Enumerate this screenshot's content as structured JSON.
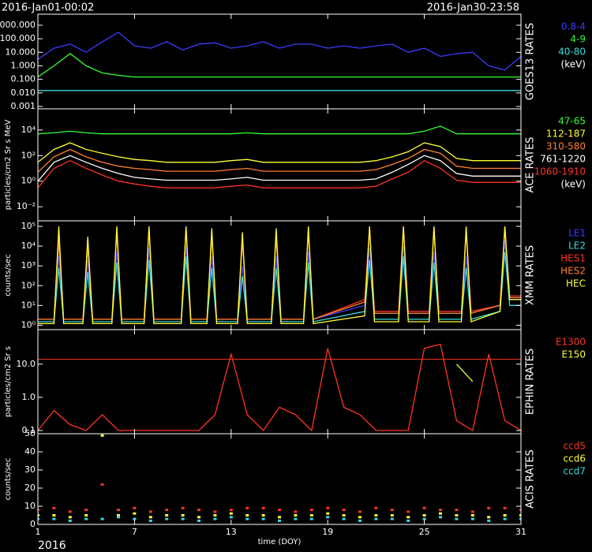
{
  "header": {
    "start": "2016-Jan01-00:02",
    "end": "2016-Jan30-23:58"
  },
  "footer": {
    "year": "2016"
  },
  "chart_data": [
    {
      "type": "line",
      "panel_label": "GOES13 RATES",
      "legend_unit": "(keV)",
      "log_y": true,
      "x": [
        1,
        2,
        3,
        4,
        5,
        6,
        7,
        8,
        9,
        10,
        11,
        12,
        13,
        14,
        15,
        16,
        17,
        18,
        19,
        20,
        21,
        22,
        23,
        24,
        25,
        26,
        27,
        28,
        29,
        30,
        31
      ],
      "series": [
        {
          "name": "0.8-4",
          "color": "#3c3cff",
          "values": [
            3,
            20,
            40,
            10,
            60,
            300,
            30,
            20,
            60,
            15,
            40,
            50,
            20,
            30,
            60,
            20,
            40,
            40,
            20,
            30,
            20,
            30,
            40,
            10,
            20,
            5,
            8,
            10,
            1,
            0.5,
            5
          ]
        },
        {
          "name": "4-9",
          "color": "#33ff33",
          "values": [
            0.15,
            1,
            8,
            1,
            0.3,
            0.2,
            0.15,
            0.15,
            0.15,
            0.15,
            0.15,
            0.15,
            0.15,
            0.15,
            0.15,
            0.15,
            0.15,
            0.15,
            0.15,
            0.15,
            0.15,
            0.15,
            0.15,
            0.15,
            0.15,
            0.15,
            0.15,
            0.15,
            0.15,
            0.15,
            0.15
          ]
        },
        {
          "name": "40-80",
          "color": "#33dddd",
          "values": [
            0.015,
            0.015,
            0.015,
            0.015,
            0.015,
            0.015,
            0.015,
            0.015,
            0.015,
            0.015,
            0.015,
            0.015,
            0.015,
            0.015,
            0.015,
            0.015,
            0.015,
            0.015,
            0.015,
            0.015,
            0.015,
            0.015,
            0.015,
            0.015,
            0.015,
            0.015,
            0.015,
            0.015,
            0.015,
            0.015,
            0.015
          ]
        }
      ],
      "xlim": [
        1,
        31
      ],
      "xticks": [
        1,
        7,
        13,
        19,
        25,
        31
      ],
      "ylim": [
        0.00067,
        6500
      ],
      "yticks": [
        0.001,
        {
          "value": 0.01,
          "label": "0.010"
        },
        {
          "value": 0.1,
          "label": "0.100"
        },
        {
          "value": 1,
          "label": "1.000"
        },
        {
          "value": 10,
          "label": "10.000"
        },
        {
          "value": 100,
          "label": "100.000"
        },
        {
          "value": 1000,
          "label": "1000.000"
        }
      ]
    },
    {
      "type": "line",
      "panel_label": "ACE RATES",
      "legend_unit": "(keV)",
      "ylabel": "particles/cm2 Sr s MeV",
      "log_y": true,
      "x": [
        1,
        2,
        3,
        4,
        5,
        6,
        7,
        8,
        9,
        10,
        11,
        12,
        13,
        14,
        15,
        16,
        17,
        18,
        19,
        20,
        21,
        22,
        23,
        24,
        25,
        26,
        27,
        28,
        29,
        30,
        31
      ],
      "series": [
        {
          "name": "47-65",
          "color": "#33ff33",
          "values": [
            5000,
            6000,
            8000,
            6000,
            5000,
            5000,
            5000,
            5000,
            5000,
            5000,
            5000,
            5000,
            5000,
            6000,
            5000,
            5000,
            5000,
            5000,
            5000,
            5000,
            5000,
            5000,
            5000,
            5000,
            8000,
            20000,
            5000,
            5000,
            5000,
            5000,
            5000
          ]
        },
        {
          "name": "112-187",
          "color": "#ffff33",
          "values": [
            30,
            300,
            1000,
            300,
            150,
            80,
            50,
            40,
            30,
            30,
            30,
            30,
            40,
            50,
            30,
            30,
            30,
            30,
            30,
            30,
            30,
            40,
            80,
            200,
            1000,
            500,
            60,
            40,
            40,
            40,
            40
          ]
        },
        {
          "name": "310-580",
          "color": "#ff8030",
          "values": [
            5,
            80,
            300,
            80,
            30,
            15,
            10,
            8,
            6,
            6,
            6,
            6,
            8,
            10,
            6,
            6,
            6,
            6,
            6,
            6,
            6,
            8,
            20,
            60,
            300,
            150,
            15,
            10,
            10,
            10,
            10
          ]
        },
        {
          "name": "761-1220",
          "color": "#ffffff",
          "values": [
            1,
            30,
            100,
            30,
            10,
            4,
            2,
            1.5,
            1.2,
            1.2,
            1.2,
            1.2,
            1.5,
            2,
            1.2,
            1.2,
            1.2,
            1.2,
            1.2,
            1.2,
            1.2,
            1.5,
            5,
            20,
            100,
            40,
            4,
            2.5,
            2.5,
            2.5,
            2.5
          ]
        },
        {
          "name": "1060-1910",
          "color": "#ff3322",
          "values": [
            0.3,
            10,
            40,
            10,
            3,
            1,
            0.6,
            0.4,
            0.3,
            0.3,
            0.3,
            0.3,
            0.4,
            0.5,
            0.3,
            0.3,
            0.3,
            0.3,
            0.3,
            0.3,
            0.3,
            0.4,
            1.5,
            5,
            40,
            10,
            1.2,
            0.8,
            0.8,
            0.8,
            0.8
          ]
        }
      ],
      "xlim": [
        1,
        31
      ],
      "xticks": [
        1,
        7,
        13,
        19,
        25,
        31
      ],
      "ylim": [
        0.0008,
        450000
      ],
      "yticks": [
        {
          "value": 0.01,
          "label": "10⁻²"
        },
        {
          "value": 1,
          "label": "10⁰"
        },
        {
          "value": 100,
          "label": "10²"
        },
        {
          "value": 10000,
          "label": "10⁴"
        }
      ]
    },
    {
      "type": "line",
      "panel_label": "XMM RATES",
      "ylabel": "counts/sec",
      "log_y": true,
      "x": [
        1,
        2.0,
        2.3,
        2.6,
        3.8,
        4.1,
        4.4,
        5.6,
        5.9,
        6.2,
        7.6,
        7.9,
        8.2,
        9.9,
        10.2,
        10.5,
        11.5,
        11.8,
        12.1,
        13.4,
        13.7,
        14.0,
        15.5,
        15.8,
        16.1,
        17.5,
        17.8,
        18.1,
        21.3,
        21.6,
        21.9,
        23.4,
        23.7,
        24.0,
        25.3,
        25.6,
        25.9,
        27.3,
        27.6,
        27.9,
        29.7,
        30.0,
        30.3,
        31
      ],
      "series": [
        {
          "name": "LE1",
          "color": "#3c3cff",
          "values": [
            2,
            2,
            3000,
            2,
            2,
            2000,
            2,
            2,
            5000,
            2,
            2,
            8000,
            2,
            2,
            10000,
            2,
            2,
            3000,
            2,
            2,
            1000,
            2,
            2,
            3000,
            2,
            2,
            5000,
            2,
            10,
            8000,
            5,
            5,
            10000,
            5,
            5,
            5000,
            5,
            5,
            3000,
            5,
            10,
            20000,
            20,
            20
          ]
        },
        {
          "name": "LE2",
          "color": "#33dddd",
          "values": [
            1.5,
            1.5,
            800,
            1.5,
            1.5,
            500,
            1.5,
            1.5,
            1500,
            1.5,
            1.5,
            2000,
            1.5,
            1.5,
            3000,
            1.5,
            1.5,
            800,
            1.5,
            1.5,
            300,
            1.5,
            1.5,
            800,
            1.5,
            1.5,
            1500,
            1.5,
            5,
            2000,
            2,
            2,
            3000,
            2,
            2,
            1500,
            2,
            2,
            800,
            2,
            5,
            5000,
            10,
            10
          ]
        },
        {
          "name": "HES1",
          "color": "#ff3322",
          "values": [
            2,
            2,
            50000,
            2,
            2,
            20000,
            2,
            2,
            80000,
            2,
            2,
            100000,
            2,
            2,
            100000,
            2,
            2,
            50000,
            2,
            2,
            30000,
            2,
            2,
            50000,
            2,
            2,
            80000,
            2,
            20,
            100000,
            5,
            5,
            100000,
            5,
            5,
            100000,
            5,
            5,
            80000,
            5,
            10,
            100000,
            30,
            30
          ]
        },
        {
          "name": "HES2",
          "color": "#ff8030",
          "values": [
            2,
            2,
            20000,
            2,
            2,
            10000,
            2,
            2,
            50000,
            2,
            2,
            80000,
            2,
            2,
            80000,
            2,
            2,
            30000,
            2,
            2,
            20000,
            2,
            2,
            30000,
            2,
            2,
            50000,
            2,
            15,
            80000,
            4,
            4,
            80000,
            4,
            4,
            80000,
            4,
            4,
            50000,
            4,
            10,
            80000,
            25,
            25
          ]
        },
        {
          "name": "HEC",
          "color": "#ffff33",
          "values": [
            1.2,
            1.2,
            100000,
            1.2,
            1.2,
            30000,
            1.2,
            1.2,
            100000,
            1.2,
            1.2,
            100000,
            1.2,
            1.2,
            100000,
            1.2,
            1.2,
            80000,
            1.2,
            1.2,
            50000,
            1.2,
            1.2,
            80000,
            1.2,
            1.2,
            100000,
            1.2,
            3,
            100000,
            1.5,
            1.5,
            100000,
            1.5,
            1.5,
            100000,
            1.5,
            1.5,
            100000,
            1.5,
            5,
            100000,
            20,
            20
          ]
        }
      ],
      "xlim": [
        1,
        31
      ],
      "xticks": [
        1,
        7,
        13,
        19,
        25,
        31
      ],
      "ylim": [
        0.6,
        190000
      ],
      "yticks": [
        {
          "value": 1,
          "label": "10⁰"
        },
        {
          "value": 10,
          "label": "10¹"
        },
        {
          "value": 100,
          "label": "10²"
        },
        {
          "value": 1000,
          "label": "10³"
        },
        {
          "value": 10000,
          "label": "10⁴"
        },
        {
          "value": 100000,
          "label": "10⁵"
        }
      ]
    },
    {
      "type": "line",
      "panel_label": "EPHIN RATES",
      "ylabel": "particles/cm2 Sr s",
      "log_y": true,
      "hline": 14,
      "x": [
        1,
        2,
        3,
        4,
        5,
        6,
        7,
        8,
        9,
        10,
        11,
        12,
        13,
        14,
        15,
        16,
        17,
        18,
        19,
        20,
        21,
        22,
        23,
        24,
        25,
        26,
        27,
        28,
        29,
        30,
        31
      ],
      "series": [
        {
          "name": "E1300",
          "color": "#ff3322",
          "values": [
            0.1,
            0.4,
            0.15,
            0.1,
            0.3,
            0.1,
            0.1,
            0.1,
            0.1,
            0.1,
            0.1,
            0.3,
            20,
            0.3,
            0.1,
            0.5,
            0.3,
            0.1,
            30,
            0.5,
            0.3,
            0.1,
            0.1,
            0.1,
            30,
            40,
            0.2,
            0.1,
            20,
            0.2,
            0.1
          ]
        },
        {
          "name": "E150",
          "color": "#ffff33",
          "values": [
            null,
            null,
            null,
            null,
            null,
            null,
            null,
            null,
            null,
            null,
            null,
            null,
            null,
            null,
            null,
            null,
            null,
            null,
            null,
            null,
            null,
            null,
            null,
            null,
            null,
            null,
            10,
            3,
            null,
            null,
            null
          ]
        }
      ],
      "xlim": [
        1,
        31
      ],
      "xticks": [
        1,
        7,
        13,
        19,
        25,
        31
      ],
      "ylim": [
        0.08,
        110
      ],
      "yticks": [
        0.1,
        {
          "value": 1,
          "label": "1.0"
        },
        {
          "value": 10,
          "label": "10.0"
        }
      ]
    },
    {
      "type": "scatter",
      "panel_label": "ACIS RATES",
      "ylabel": "counts/sec",
      "xlabel": "time (DOY)",
      "x": [
        1,
        2,
        3,
        4,
        5,
        6,
        7,
        8,
        9,
        10,
        11,
        12,
        13,
        14,
        15,
        16,
        17,
        18,
        19,
        20,
        21,
        22,
        23,
        24,
        25,
        26,
        27,
        28,
        29,
        30,
        31
      ],
      "series": [
        {
          "name": "ccd5",
          "color": "#ff3322",
          "values": [
            8,
            9,
            7,
            8,
            22,
            8,
            9,
            7,
            8,
            9,
            8,
            7,
            8,
            9,
            9,
            8,
            7,
            8,
            9,
            8,
            7,
            9,
            8,
            7,
            9,
            8,
            8,
            7,
            9,
            9,
            8
          ]
        },
        {
          "name": "ccd6",
          "color": "#ffff33",
          "values": [
            5,
            5,
            4,
            5,
            49,
            5,
            6,
            4,
            5,
            5,
            4,
            5,
            6,
            5,
            5,
            4,
            5,
            5,
            6,
            5,
            4,
            5,
            5,
            4,
            5,
            6,
            5,
            5,
            4,
            5,
            5
          ]
        },
        {
          "name": "ccd7",
          "color": "#33dddd",
          "values": [
            3,
            3,
            2,
            3,
            3,
            4,
            3,
            2,
            3,
            3,
            2,
            3,
            4,
            3,
            3,
            2,
            3,
            3,
            4,
            3,
            2,
            3,
            3,
            2,
            3,
            4,
            3,
            3,
            2,
            3,
            3
          ]
        }
      ],
      "xlim": [
        1,
        31
      ],
      "xticks": [
        1,
        7,
        13,
        19,
        25,
        31
      ],
      "ylim": [
        0,
        50
      ],
      "yticks": [
        0,
        10,
        20,
        30,
        40,
        50
      ]
    }
  ]
}
